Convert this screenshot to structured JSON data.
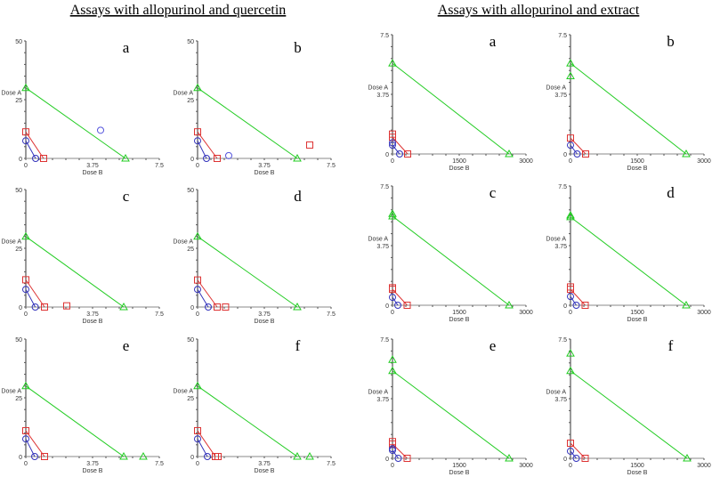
{
  "titles": {
    "left": "Assays with allopurinol and quercetin",
    "right": "Assays with allopurinol and extract"
  },
  "chart_data": [
    {
      "group": "left",
      "type": "scatter",
      "letter": "a",
      "xlabel": "Dose B",
      "ylabel": "Dose A",
      "xlim": [
        0,
        7.5
      ],
      "ylim": [
        0,
        50
      ],
      "xticks": [
        "0",
        "3.75",
        "7.5"
      ],
      "yticks": [
        "0",
        "25",
        "50"
      ],
      "isoboles": [
        {
          "color": "#22cc22",
          "marker": "triangle",
          "points": [
            [
              0,
              30
            ],
            [
              5.6,
              0
            ]
          ]
        },
        {
          "color": "#dd3333",
          "marker": "square",
          "points": [
            [
              0,
              11.3
            ],
            [
              1.0,
              0
            ]
          ]
        },
        {
          "color": "#3333bb",
          "marker": "circle",
          "points": [
            [
              0,
              7.5
            ],
            [
              0.55,
              0
            ]
          ]
        }
      ],
      "points": [
        {
          "color": "#5555dd",
          "marker": "circle",
          "x": 4.2,
          "y": 12
        }
      ]
    },
    {
      "group": "left",
      "type": "scatter",
      "letter": "b",
      "xlabel": "Dose B",
      "ylabel": "Dose A",
      "xlim": [
        0,
        7.5
      ],
      "ylim": [
        0,
        50
      ],
      "xticks": [
        "0",
        "3.75",
        "7.5"
      ],
      "yticks": [
        "0",
        "25",
        "50"
      ],
      "isoboles": [
        {
          "color": "#22cc22",
          "marker": "triangle",
          "points": [
            [
              0,
              30
            ],
            [
              5.6,
              0
            ]
          ]
        },
        {
          "color": "#dd3333",
          "marker": "square",
          "points": [
            [
              0,
              11.3
            ],
            [
              1.1,
              0
            ]
          ]
        },
        {
          "color": "#3333bb",
          "marker": "circle",
          "points": [
            [
              0,
              7.5
            ],
            [
              0.5,
              0
            ]
          ]
        }
      ],
      "points": [
        {
          "color": "#5555dd",
          "marker": "circle",
          "x": 1.75,
          "y": 1.2
        },
        {
          "color": "#dd3333",
          "marker": "square",
          "x": 6.3,
          "y": 5.7
        }
      ]
    },
    {
      "group": "left",
      "type": "scatter",
      "letter": "c",
      "xlabel": "Dose B",
      "ylabel": "Dose A",
      "xlim": [
        0,
        7.5
      ],
      "ylim": [
        0,
        50
      ],
      "xticks": [
        "0",
        "3.75",
        "7.5"
      ],
      "yticks": [
        "0",
        "25",
        "50"
      ],
      "isoboles": [
        {
          "color": "#22cc22",
          "marker": "triangle",
          "points": [
            [
              0,
              30
            ],
            [
              5.5,
              0
            ]
          ]
        },
        {
          "color": "#dd3333",
          "marker": "square",
          "points": [
            [
              0,
              11.6
            ],
            [
              1.05,
              0
            ]
          ]
        },
        {
          "color": "#3333bb",
          "marker": "circle",
          "points": [
            [
              0,
              7.5
            ],
            [
              0.53,
              0
            ]
          ]
        }
      ],
      "points": [
        {
          "color": "#dd3333",
          "marker": "square",
          "x": 2.3,
          "y": 0.5
        }
      ]
    },
    {
      "group": "left",
      "type": "scatter",
      "letter": "d",
      "xlabel": "Dose B",
      "ylabel": "Dose A",
      "xlim": [
        0,
        7.5
      ],
      "ylim": [
        0,
        50
      ],
      "xticks": [
        "0",
        "3.75",
        "7.5"
      ],
      "yticks": [
        "0",
        "25",
        "50"
      ],
      "isoboles": [
        {
          "color": "#22cc22",
          "marker": "triangle",
          "points": [
            [
              0,
              30
            ],
            [
              5.6,
              0
            ]
          ]
        },
        {
          "color": "#dd3333",
          "marker": "square",
          "points": [
            [
              0,
              11.5
            ],
            [
              1.1,
              0
            ]
          ]
        },
        {
          "color": "#3333bb",
          "marker": "circle",
          "points": [
            [
              0,
              7.5
            ],
            [
              0.6,
              0
            ]
          ]
        }
      ],
      "points": [
        {
          "color": "#dd3333",
          "marker": "square",
          "x": 1.57,
          "y": 0
        }
      ]
    },
    {
      "group": "left",
      "type": "scatter",
      "letter": "e",
      "xlabel": "Dose B",
      "ylabel": "Dose A",
      "xlim": [
        0,
        7.5
      ],
      "ylim": [
        0,
        50
      ],
      "xticks": [
        "0",
        "3.75",
        "7.5"
      ],
      "yticks": [
        "0",
        "25",
        "50"
      ],
      "isoboles": [
        {
          "color": "#22cc22",
          "marker": "triangle",
          "points": [
            [
              0,
              30
            ],
            [
              5.5,
              0
            ]
          ]
        },
        {
          "color": "#dd3333",
          "marker": "square",
          "points": [
            [
              0,
              11
            ],
            [
              1.05,
              0
            ]
          ]
        },
        {
          "color": "#3333bb",
          "marker": "circle",
          "points": [
            [
              0,
              7.5
            ],
            [
              0.5,
              0
            ]
          ]
        }
      ],
      "points": [
        {
          "color": "#22cc22",
          "marker": "triangle",
          "x": 6.6,
          "y": 0
        }
      ]
    },
    {
      "group": "left",
      "type": "scatter",
      "letter": "f",
      "xlabel": "Dose B",
      "ylabel": "Dose A",
      "xlim": [
        0,
        7.5
      ],
      "ylim": [
        0,
        50
      ],
      "xticks": [
        "0",
        "3.75",
        "7.5"
      ],
      "yticks": [
        "0",
        "25",
        "50"
      ],
      "isoboles": [
        {
          "color": "#22cc22",
          "marker": "triangle",
          "points": [
            [
              0,
              30
            ],
            [
              5.6,
              0
            ]
          ]
        },
        {
          "color": "#dd3333",
          "marker": "square",
          "points": [
            [
              0,
              11
            ],
            [
              1.0,
              0
            ]
          ]
        },
        {
          "color": "#3333bb",
          "marker": "circle",
          "points": [
            [
              0,
              7.5
            ],
            [
              0.55,
              0
            ]
          ]
        }
      ],
      "points": [
        {
          "color": "#22cc22",
          "marker": "triangle",
          "x": 6.3,
          "y": 0
        },
        {
          "color": "#dd3333",
          "marker": "square",
          "x": 1.15,
          "y": 0
        }
      ]
    },
    {
      "group": "right",
      "type": "scatter",
      "letter": "a",
      "xlabel": "Dose B",
      "ylabel": "Dose A",
      "xlim": [
        0,
        3000
      ],
      "ylim": [
        0,
        7.5
      ],
      "xticks": [
        "0",
        "1500",
        "3000"
      ],
      "yticks": [
        "0",
        "3.75",
        "7.5"
      ],
      "isoboles": [
        {
          "color": "#22cc22",
          "marker": "triangle",
          "points": [
            [
              0,
              5.7
            ],
            [
              2620,
              0
            ]
          ]
        },
        {
          "color": "#dd3333",
          "marker": "square",
          "points": [
            [
              0,
              1.05
            ],
            [
              340,
              0
            ]
          ]
        },
        {
          "color": "#3333bb",
          "marker": "circle",
          "points": [
            [
              0,
              0.55
            ],
            [
              160,
              0
            ]
          ]
        }
      ],
      "points": [
        {
          "color": "#dd3333",
          "marker": "square",
          "x": 0,
          "y": 1.25
        },
        {
          "color": "#3333bb",
          "marker": "circle",
          "x": 0,
          "y": 0.7
        }
      ]
    },
    {
      "group": "right",
      "type": "scatter",
      "letter": "b",
      "xlabel": "Dose B",
      "ylabel": "Dose A",
      "xlim": [
        0,
        3000
      ],
      "ylim": [
        0,
        7.5
      ],
      "xticks": [
        "0",
        "1500",
        "3000"
      ],
      "yticks": [
        "0",
        "3.75",
        "7.5"
      ],
      "isoboles": [
        {
          "color": "#22cc22",
          "marker": "triangle",
          "points": [
            [
              0,
              5.7
            ],
            [
              2600,
              0
            ]
          ]
        },
        {
          "color": "#dd3333",
          "marker": "square",
          "points": [
            [
              0,
              1.0
            ],
            [
              340,
              0
            ]
          ]
        },
        {
          "color": "#3333bb",
          "marker": "circle",
          "points": [
            [
              0,
              0.55
            ],
            [
              150,
              0
            ]
          ]
        }
      ],
      "points": [
        {
          "color": "#22cc22",
          "marker": "triangle",
          "x": 0,
          "y": 4.9
        }
      ]
    },
    {
      "group": "right",
      "type": "scatter",
      "letter": "c",
      "xlabel": "Dose B",
      "ylabel": "Dose A",
      "xlim": [
        0,
        3000
      ],
      "ylim": [
        0,
        7.5
      ],
      "xticks": [
        "0",
        "1500",
        "3000"
      ],
      "yticks": [
        "0",
        "3.75",
        "7.5"
      ],
      "isoboles": [
        {
          "color": "#22cc22",
          "marker": "triangle",
          "points": [
            [
              0,
              5.6
            ],
            [
              2620,
              0
            ]
          ]
        },
        {
          "color": "#dd3333",
          "marker": "square",
          "points": [
            [
              0,
              1.0
            ],
            [
              330,
              0
            ]
          ]
        },
        {
          "color": "#3333bb",
          "marker": "circle",
          "points": [
            [
              0,
              0.5
            ],
            [
              120,
              0
            ]
          ]
        }
      ],
      "points": [
        {
          "color": "#22cc22",
          "marker": "triangle",
          "x": 0,
          "y": 5.75
        },
        {
          "color": "#dd3333",
          "marker": "square",
          "x": 0,
          "y": 1.1
        }
      ]
    },
    {
      "group": "right",
      "type": "scatter",
      "letter": "d",
      "xlabel": "Dose B",
      "ylabel": "Dose A",
      "xlim": [
        0,
        3000
      ],
      "ylim": [
        0,
        7.5
      ],
      "xticks": [
        "0",
        "1500",
        "3000"
      ],
      "yticks": [
        "0",
        "3.75",
        "7.5"
      ],
      "isoboles": [
        {
          "color": "#22cc22",
          "marker": "triangle",
          "points": [
            [
              0,
              5.55
            ],
            [
              2600,
              0
            ]
          ]
        },
        {
          "color": "#dd3333",
          "marker": "square",
          "points": [
            [
              0,
              1.0
            ],
            [
              330,
              0
            ]
          ]
        },
        {
          "color": "#3333bb",
          "marker": "circle",
          "points": [
            [
              0,
              0.55
            ],
            [
              130,
              0
            ]
          ]
        }
      ],
      "points": [
        {
          "color": "#22cc22",
          "marker": "triangle",
          "x": 0,
          "y": 5.65
        },
        {
          "color": "#dd3333",
          "marker": "square",
          "x": 0,
          "y": 1.15
        }
      ]
    },
    {
      "group": "right",
      "type": "scatter",
      "letter": "e",
      "xlabel": "Dose B",
      "ylabel": "Dose A",
      "xlim": [
        0,
        3000
      ],
      "ylim": [
        0,
        7.5
      ],
      "xticks": [
        "0",
        "1500",
        "3000"
      ],
      "yticks": [
        "0",
        "3.75",
        "7.5"
      ],
      "isoboles": [
        {
          "color": "#22cc22",
          "marker": "triangle",
          "points": [
            [
              0,
              5.5
            ],
            [
              2620,
              0
            ]
          ]
        },
        {
          "color": "#dd3333",
          "marker": "square",
          "points": [
            [
              0,
              0.9
            ],
            [
              330,
              0
            ]
          ]
        },
        {
          "color": "#3333bb",
          "marker": "circle",
          "points": [
            [
              0,
              0.5
            ],
            [
              130,
              0
            ]
          ]
        }
      ],
      "points": [
        {
          "color": "#22cc22",
          "marker": "triangle",
          "x": 0,
          "y": 6.2
        },
        {
          "color": "#dd3333",
          "marker": "square",
          "x": 0,
          "y": 1.05
        },
        {
          "color": "#3333bb",
          "marker": "circle",
          "x": 0,
          "y": 0.6
        }
      ]
    },
    {
      "group": "right",
      "type": "scatter",
      "letter": "f",
      "xlabel": "Dose B",
      "ylabel": "Dose A",
      "xlim": [
        0,
        3000
      ],
      "ylim": [
        0,
        7.5
      ],
      "xticks": [
        "0",
        "1500",
        "3000"
      ],
      "yticks": [
        "0",
        "3.75",
        "7.5"
      ],
      "isoboles": [
        {
          "color": "#22cc22",
          "marker": "triangle",
          "points": [
            [
              0,
              5.5
            ],
            [
              2620,
              0
            ]
          ]
        },
        {
          "color": "#dd3333",
          "marker": "square",
          "points": [
            [
              0,
              0.95
            ],
            [
              330,
              0
            ]
          ]
        },
        {
          "color": "#3333bb",
          "marker": "circle",
          "points": [
            [
              0,
              0.45
            ],
            [
              130,
              0
            ]
          ]
        }
      ],
      "points": [
        {
          "color": "#22cc22",
          "marker": "triangle",
          "x": 0,
          "y": 6.6
        }
      ]
    }
  ]
}
